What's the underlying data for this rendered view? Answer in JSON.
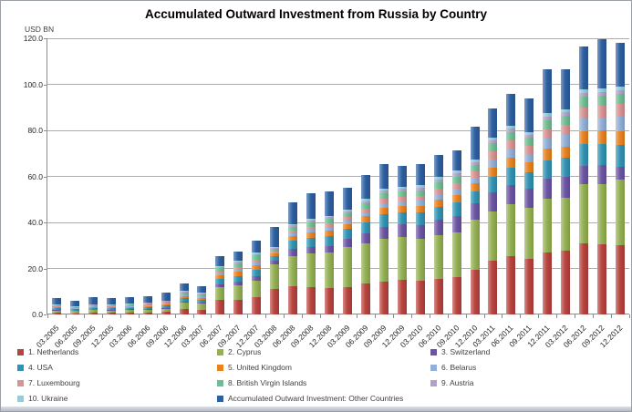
{
  "chart": {
    "title": "Accumulated Outward Investment from Russia by Country",
    "y_axis_unit": "USD BN"
  },
  "chart_data": {
    "type": "bar",
    "stacked": true,
    "title": "Accumulated Outward Investment from Russia by Country",
    "xlabel": "",
    "ylabel": "USD BN",
    "ylim": [
      0,
      120
    ],
    "y_tick_step": 20,
    "y_tick_decimals": 1,
    "grid": true,
    "legend_position": "bottom",
    "categories": [
      "03.2005",
      "06.2005",
      "09.2005",
      "12.2005",
      "03.2006",
      "06.2006",
      "09.2006",
      "12.2006",
      "03.2007",
      "06.2007",
      "09.2007",
      "12.2007",
      "03.2008",
      "06.2008",
      "09.2008",
      "12.2008",
      "03.2009",
      "06.2009",
      "09.2009",
      "12.2009",
      "03.2010",
      "06.2010",
      "09.2010",
      "12.2010",
      "03.2011",
      "06.2011",
      "09.2011",
      "12.2011",
      "03.2012",
      "06.2012",
      "09.2012",
      "12.2012"
    ],
    "series": [
      {
        "name": "Netherlands",
        "legend_label": "1. Netherlands",
        "color": "#B8433E",
        "values": [
          0.7,
          0.6,
          0.7,
          0.7,
          0.8,
          0.8,
          1.0,
          2.2,
          2.0,
          6.3,
          6.5,
          7.5,
          10.9,
          12.2,
          11.8,
          11.4,
          11.8,
          13.5,
          14.4,
          15.0,
          14.6,
          15.4,
          16.2,
          19.4,
          23.3,
          25.2,
          24.2,
          26.8,
          27.7,
          31.0,
          30.6,
          30.0
        ]
      },
      {
        "name": "Cyprus",
        "legend_label": "2. Cyprus",
        "color": "#94B052",
        "values": [
          1.1,
          0.9,
          1.2,
          1.1,
          1.2,
          1.3,
          1.6,
          3.0,
          2.6,
          5.5,
          6.2,
          7.3,
          10.7,
          13.3,
          14.8,
          15.7,
          17.5,
          17.5,
          18.3,
          18.6,
          18.4,
          19.2,
          19.6,
          21.6,
          21.4,
          22.6,
          22.0,
          23.5,
          22.9,
          25.6,
          26.2,
          28.8
        ]
      },
      {
        "name": "Switzerland",
        "legend_label": "3. Switzerland",
        "color": "#6B55A3",
        "values": [
          0.2,
          0.2,
          0.2,
          0.2,
          0.2,
          0.3,
          0.3,
          0.5,
          0.5,
          1.2,
          1.5,
          1.8,
          1.8,
          3.2,
          2.8,
          2.6,
          3.7,
          4.3,
          5.5,
          5.8,
          6.0,
          6.5,
          7.0,
          7.2,
          8.2,
          8.6,
          8.4,
          8.8,
          9.1,
          7.8,
          8.0,
          5.2
        ]
      },
      {
        "name": "USA",
        "legend_label": "4. USA",
        "color": "#3193B3",
        "values": [
          0.7,
          0.5,
          0.7,
          0.7,
          0.7,
          0.8,
          0.9,
          1.3,
          1.2,
          2.4,
          2.6,
          2.8,
          2.0,
          3.5,
          4.0,
          4.5,
          4.2,
          4.8,
          5.2,
          5.0,
          5.2,
          5.6,
          5.8,
          5.4,
          6.8,
          7.2,
          7.0,
          8.0,
          8.3,
          9.5,
          9.4,
          9.8
        ]
      },
      {
        "name": "United Kingdom",
        "legend_label": "5. United Kingdom",
        "color": "#E8821F",
        "values": [
          0.5,
          0.4,
          0.5,
          0.5,
          0.5,
          0.6,
          0.7,
          1.0,
          0.9,
          1.6,
          1.8,
          2.0,
          1.0,
          2.0,
          2.2,
          2.4,
          2.2,
          2.6,
          3.0,
          2.8,
          3.0,
          3.2,
          3.4,
          3.4,
          4.2,
          4.6,
          4.4,
          5.0,
          5.0,
          5.8,
          5.7,
          5.9
        ]
      },
      {
        "name": "Belarus",
        "legend_label": "6. Belarus",
        "color": "#92AFD7",
        "values": [
          0.2,
          0.2,
          0.2,
          0.2,
          0.3,
          0.3,
          0.3,
          0.5,
          0.5,
          0.9,
          1.0,
          1.2,
          0.6,
          1.2,
          1.4,
          1.6,
          1.5,
          1.8,
          2.0,
          2.0,
          2.2,
          2.4,
          2.6,
          2.6,
          3.6,
          3.9,
          3.8,
          4.6,
          5.0,
          5.6,
          5.8,
          6.5
        ]
      },
      {
        "name": "Luxembourg",
        "legend_label": "7. Luxembourg",
        "color": "#D89492",
        "values": [
          0.2,
          0.15,
          0.2,
          0.2,
          0.2,
          0.25,
          0.3,
          0.4,
          0.4,
          0.8,
          0.9,
          1.1,
          0.5,
          1.0,
          1.2,
          1.3,
          1.3,
          1.6,
          1.8,
          1.8,
          2.0,
          2.2,
          2.4,
          2.4,
          3.2,
          3.4,
          3.3,
          3.8,
          4.2,
          4.8,
          5.0,
          5.2
        ]
      },
      {
        "name": "British Virgin Islands",
        "legend_label": "8. British Virgin Islands",
        "color": "#6FBE92",
        "values": [
          0.4,
          0.35,
          0.45,
          0.4,
          0.45,
          0.5,
          0.6,
          0.8,
          0.7,
          1.5,
          1.7,
          1.9,
          1.0,
          1.6,
          1.8,
          1.9,
          1.8,
          2.2,
          2.4,
          2.4,
          2.6,
          2.8,
          3.0,
          3.0,
          3.6,
          3.8,
          3.7,
          4.0,
          4.1,
          4.5,
          4.4,
          4.6
        ]
      },
      {
        "name": "Austria",
        "legend_label": "9. Austria",
        "color": "#B2A1C7",
        "values": [
          0.15,
          0.1,
          0.15,
          0.15,
          0.15,
          0.2,
          0.2,
          0.3,
          0.3,
          0.5,
          0.6,
          0.7,
          0.5,
          0.7,
          0.8,
          0.8,
          0.8,
          1.0,
          1.1,
          1.1,
          1.2,
          1.3,
          1.3,
          1.3,
          1.4,
          1.5,
          1.4,
          1.6,
          1.6,
          1.7,
          1.7,
          1.6
        ]
      },
      {
        "name": "Ukraine",
        "legend_label": "10. Ukraine",
        "color": "#92CDDC",
        "values": [
          0.1,
          0.1,
          0.1,
          0.1,
          0.15,
          0.15,
          0.2,
          0.25,
          0.25,
          0.4,
          0.45,
          0.5,
          0.4,
          0.6,
          0.7,
          0.7,
          0.7,
          0.9,
          1.0,
          1.0,
          1.0,
          1.1,
          1.1,
          1.1,
          1.2,
          1.3,
          1.2,
          1.4,
          1.3,
          1.4,
          1.4,
          1.3
        ]
      },
      {
        "name": "Other Countries",
        "legend_label": "Accumulated Outward Investment: Other Countries",
        "color": "#2D5FA1",
        "values": [
          2.85,
          2.3,
          3.1,
          2.85,
          3.05,
          2.9,
          3.3,
          3.35,
          3.05,
          4.4,
          4.25,
          5.1,
          8.8,
          9.6,
          11.0,
          10.7,
          9.7,
          10.5,
          10.7,
          9.1,
          9.0,
          9.5,
          8.9,
          14.2,
          12.5,
          13.6,
          14.3,
          19.2,
          17.5,
          18.9,
          21.3,
          19.0
        ]
      }
    ]
  }
}
